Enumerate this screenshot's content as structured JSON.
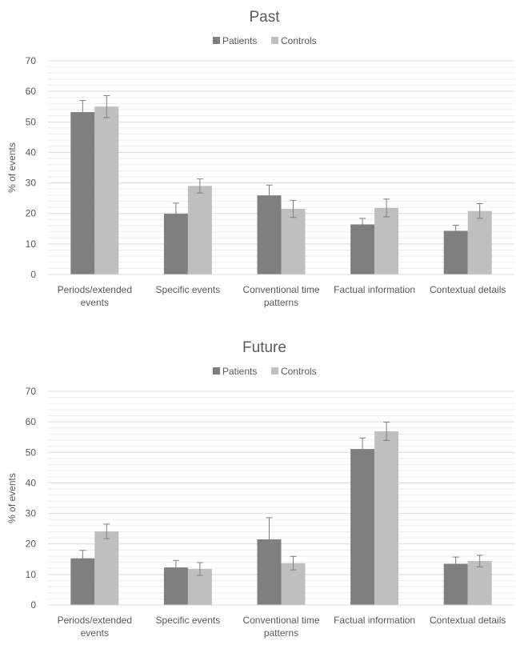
{
  "chart_data": [
    {
      "type": "bar",
      "title": "Past",
      "ylabel": "% of events",
      "ylim": [
        0,
        70
      ],
      "yticks": [
        0,
        10,
        20,
        30,
        40,
        50,
        60,
        70
      ],
      "minor_grid_step": 2,
      "grid": true,
      "legend_position": "top",
      "categories": [
        [
          "Periods/extended",
          "events"
        ],
        [
          "Specific events"
        ],
        [
          "Conventional time",
          "patterns"
        ],
        [
          "Factual information"
        ],
        [
          "Contextual details"
        ]
      ],
      "series": [
        {
          "name": "Patients",
          "color": "#7f7f7f",
          "values": [
            53.2,
            19.9,
            25.9,
            16.4,
            14.3
          ],
          "errors": [
            3.8,
            3.5,
            3.4,
            2.0,
            1.8
          ]
        },
        {
          "name": "Controls",
          "color": "#bfbfbf",
          "values": [
            55.0,
            29.0,
            21.5,
            21.8,
            20.8
          ],
          "errors": [
            3.6,
            2.3,
            2.8,
            2.9,
            2.4
          ]
        }
      ]
    },
    {
      "type": "bar",
      "title": "Future",
      "ylabel": "% of events",
      "ylim": [
        0,
        70
      ],
      "yticks": [
        0,
        10,
        20,
        30,
        40,
        50,
        60,
        70
      ],
      "minor_grid_step": 2,
      "grid": true,
      "legend_position": "top",
      "categories": [
        [
          "Periods/extended",
          "events"
        ],
        [
          "Specific events"
        ],
        [
          "Conventional time",
          "patterns"
        ],
        [
          "Factual information"
        ],
        [
          "Contextual details"
        ]
      ],
      "series": [
        {
          "name": "Patients",
          "color": "#7f7f7f",
          "values": [
            15.3,
            12.3,
            21.5,
            51.1,
            13.5
          ],
          "errors": [
            2.6,
            2.3,
            7.1,
            3.6,
            2.2
          ]
        },
        {
          "name": "Controls",
          "color": "#bfbfbf",
          "values": [
            24.1,
            11.8,
            13.7,
            56.9,
            14.4
          ],
          "errors": [
            2.4,
            2.1,
            2.2,
            3.0,
            1.9
          ]
        }
      ]
    }
  ],
  "colors": {
    "axis_text": "#595959",
    "title_text": "#595959",
    "major_grid": "#d9d9d9",
    "minor_grid": "#ededed",
    "error_bar": "#7f7f7f"
  }
}
